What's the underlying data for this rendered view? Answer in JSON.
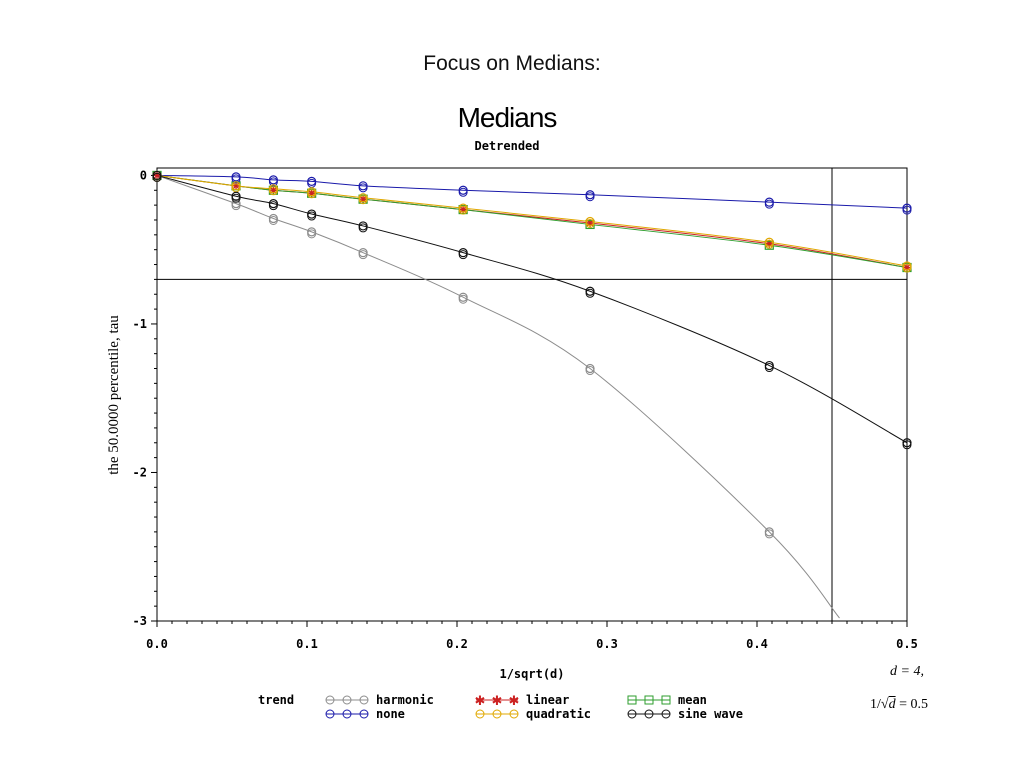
{
  "slide": {
    "title": "Focus on Medians:"
  },
  "annotation": {
    "line1": "d = 4,",
    "line2_prefix": "1/",
    "line2_radicand": "d",
    "line2_suffix": " = 0.5"
  },
  "chart_data": {
    "type": "line",
    "title": "Medians",
    "subtitle": "Detrended",
    "xlabel": "1/sqrt(d)",
    "ylabel": "the   50.0000 percentile, tau",
    "xlim": [
      0.0,
      0.5
    ],
    "ylim": [
      -3,
      0
    ],
    "xticks": [
      0.0,
      0.1,
      0.2,
      0.3,
      0.4,
      0.5
    ],
    "xtick_labels": [
      "0.0",
      "0.1",
      "0.2",
      "0.3",
      "0.4",
      "0.5"
    ],
    "yticks": [
      0,
      -1,
      -2,
      -3
    ],
    "ytick_labels": [
      "0",
      "-1",
      "-2",
      "-3"
    ],
    "reference_lines": {
      "vertical_x": 0.45,
      "horizontal_y": -0.7
    },
    "legend": {
      "title": "trend",
      "placement": "bottom"
    },
    "x": [
      0.0,
      0.0527,
      0.0776,
      0.1031,
      0.1374,
      0.2041,
      0.2887,
      0.4082,
      0.5
    ],
    "series": [
      {
        "name": "harmonic",
        "color": "#8c8c8c",
        "marker": "circle",
        "values": [
          0.0,
          -0.19,
          -0.29,
          -0.38,
          -0.52,
          -0.82,
          -1.3,
          -2.4,
          null
        ],
        "curve_end": {
          "x": 0.455,
          "y": -2.98
        }
      },
      {
        "name": "linear",
        "color": "#cc2222",
        "marker": "star",
        "values": [
          0.0,
          -0.07,
          -0.1,
          -0.12,
          -0.16,
          -0.23,
          -0.32,
          -0.46,
          -0.62
        ]
      },
      {
        "name": "mean",
        "color": "#2e9e2e",
        "marker": "square",
        "values": [
          0.0,
          -0.07,
          -0.1,
          -0.12,
          -0.16,
          -0.23,
          -0.33,
          -0.47,
          -0.62
        ]
      },
      {
        "name": "none",
        "color": "#1a1aaa",
        "marker": "circle",
        "values": [
          0.0,
          -0.01,
          -0.03,
          -0.04,
          -0.07,
          -0.1,
          -0.13,
          -0.18,
          -0.22
        ]
      },
      {
        "name": "quadratic",
        "color": "#e0a800",
        "marker": "circle",
        "values": [
          0.0,
          -0.07,
          -0.09,
          -0.11,
          -0.15,
          -0.22,
          -0.31,
          -0.45,
          -0.61
        ]
      },
      {
        "name": "sine wave",
        "color": "#111111",
        "marker": "circle",
        "values": [
          0.0,
          -0.14,
          -0.19,
          -0.26,
          -0.34,
          -0.52,
          -0.78,
          -1.28,
          -1.8
        ]
      }
    ]
  },
  "legend_items": [
    {
      "label": "harmonic"
    },
    {
      "label": "none"
    },
    {
      "label": "linear"
    },
    {
      "label": "quadratic"
    },
    {
      "label": "mean"
    },
    {
      "label": "sine wave"
    }
  ]
}
